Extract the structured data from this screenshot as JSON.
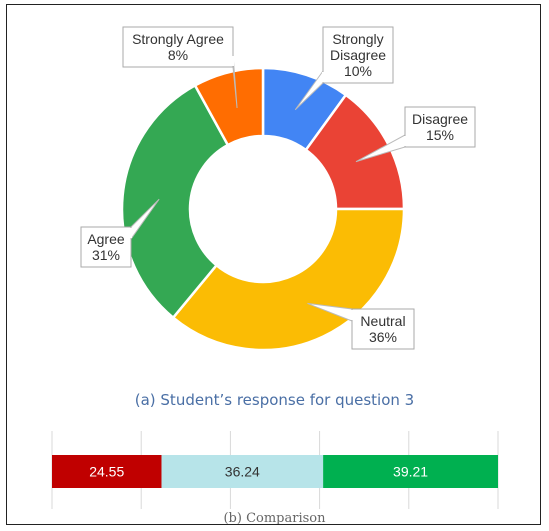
{
  "chart_data": [
    {
      "type": "pie",
      "variant": "donut",
      "title": "(a) Student’s response for question 3",
      "slices": [
        {
          "label": "Strongly Disagree",
          "value": 10,
          "value_label": "10%",
          "color": "#4285f4"
        },
        {
          "label": "Disagree",
          "value": 15,
          "value_label": "15%",
          "color": "#ea4335"
        },
        {
          "label": "Neutral",
          "value": 36,
          "value_label": "36%",
          "color": "#fbbc04"
        },
        {
          "label": "Agree",
          "value": 31,
          "value_label": "31%",
          "color": "#34a853"
        },
        {
          "label": "Strongly Agree",
          "value": 8,
          "value_label": "8%",
          "color": "#ff6d01"
        }
      ]
    },
    {
      "type": "bar",
      "variant": "stacked-horizontal",
      "title": "(b) Comparison",
      "segments": [
        {
          "value": 24.55,
          "value_label": "24.55",
          "color": "#c00000",
          "text_color": "#ffffff"
        },
        {
          "value": 36.24,
          "value_label": "36.24",
          "color": "#b7e4e9",
          "text_color": "#333333"
        },
        {
          "value": 39.21,
          "value_label": "39.21",
          "color": "#00b050",
          "text_color": "#ffffff"
        }
      ],
      "xlim": [
        0,
        100
      ],
      "grid": true
    }
  ]
}
